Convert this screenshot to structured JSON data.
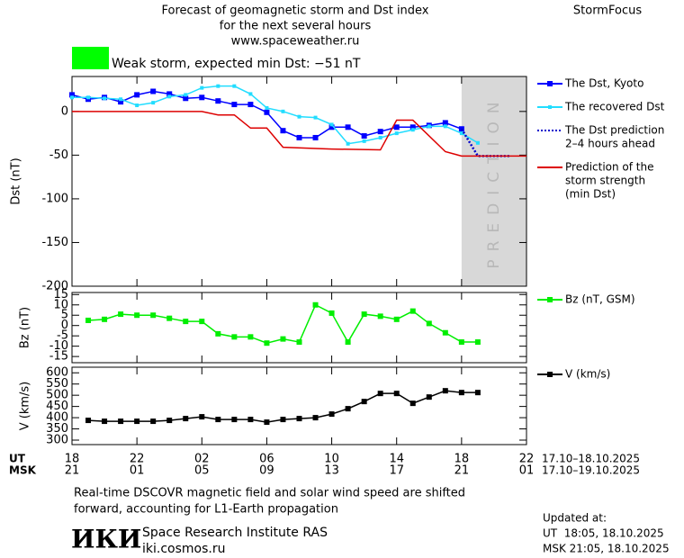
{
  "header": {
    "title": [
      "Forecast of geomagnetic storm and Dst index",
      "for the next several hours",
      "www.spaceweather.ru"
    ],
    "brand": "StormFocus"
  },
  "status": {
    "color": "#00ff00",
    "text": "Weak storm, expected min Dst: −51 nT"
  },
  "chart_data": [
    {
      "type": "line",
      "ylabel": "Dst (nT)",
      "xlim": [
        0,
        28
      ],
      "ylim": [
        -200,
        40
      ],
      "yticks": [
        0,
        -50,
        -100,
        -150,
        -200
      ],
      "shaded": {
        "xlim": [
          24,
          28
        ],
        "label": "PREDICTION",
        "color": "#d8d8d8"
      },
      "series": [
        {
          "name": [
            "The Dst, Kyoto"
          ],
          "color": "#0000ff",
          "marker": "square",
          "line": "solid",
          "x": [
            0,
            1,
            2,
            3,
            4,
            5,
            6,
            7,
            8,
            9,
            10,
            11,
            12,
            13,
            14,
            15,
            16,
            17,
            18,
            19,
            20,
            21,
            22,
            23,
            24
          ],
          "values": [
            19,
            14,
            16,
            11,
            19,
            23,
            20,
            15,
            16,
            12,
            8,
            8,
            -1,
            -22,
            -30,
            -30,
            -18,
            -18,
            -28,
            -23,
            -18,
            -18,
            -16,
            -13,
            -20
          ]
        },
        {
          "name": [
            "The recovered Dst"
          ],
          "color": "#22ddff",
          "marker": "small-square",
          "line": "solid",
          "x": [
            0,
            1,
            2,
            3,
            4,
            5,
            6,
            7,
            8,
            9,
            10,
            11,
            12,
            13,
            14,
            15,
            16,
            17,
            18,
            19,
            20,
            21,
            22,
            23,
            24,
            25
          ],
          "values": [
            16,
            16,
            15,
            14,
            7,
            10,
            17,
            19,
            27,
            29,
            29,
            20,
            4,
            0,
            -6,
            -7,
            -15,
            -37,
            -34,
            -30,
            -25,
            -21,
            -17,
            -17,
            -25,
            -36
          ]
        },
        {
          "name": [
            "The Dst prediction",
            "2–4 hours ahead"
          ],
          "color": "#0000cc",
          "marker": "none",
          "line": "dotted",
          "x": [
            24,
            25,
            27
          ],
          "values": [
            -20,
            -51,
            -51
          ]
        },
        {
          "name": [
            "Prediction of the",
            "storm strength",
            "(min Dst)"
          ],
          "color": "#dd0000",
          "marker": "none",
          "line": "solid",
          "x": [
            0,
            8,
            9,
            10,
            11,
            12,
            13,
            16,
            19,
            20,
            21,
            23,
            24,
            28
          ],
          "values": [
            0,
            0,
            -4,
            -4,
            -19,
            -19,
            -41,
            -43,
            -44,
            -10,
            -10,
            -46,
            -51,
            -51
          ]
        }
      ]
    },
    {
      "type": "line",
      "ylabel": "Bz (nT)",
      "xlim": [
        0,
        28
      ],
      "ylim": [
        -18,
        16
      ],
      "yticks": [
        15,
        10,
        5,
        0,
        -5,
        -10,
        -15
      ],
      "series": [
        {
          "name": [
            "Bz (nT, GSM)"
          ],
          "color": "#00ee00",
          "marker": "square",
          "line": "solid",
          "x": [
            1,
            2,
            3,
            4,
            5,
            6,
            7,
            8,
            9,
            10,
            11,
            12,
            13,
            14,
            15,
            16,
            17,
            18,
            19,
            20,
            21,
            22,
            23,
            24,
            25
          ],
          "values": [
            2.5,
            3,
            5.5,
            5,
            5,
            3.5,
            2,
            2,
            -4,
            -5.5,
            -5.5,
            -8.5,
            -6.5,
            -8,
            10,
            6,
            -8,
            5.5,
            4.5,
            3,
            7,
            1,
            -3.5,
            -8,
            -8
          ]
        }
      ]
    },
    {
      "type": "line",
      "ylabel": "V (km/s)",
      "xlim": [
        0,
        28
      ],
      "ylim": [
        280,
        625
      ],
      "yticks": [
        600,
        550,
        500,
        450,
        400,
        350,
        300
      ],
      "series": [
        {
          "name": [
            "V (km/s)"
          ],
          "color": "#000000",
          "marker": "square",
          "line": "solid",
          "x": [
            1,
            2,
            3,
            4,
            5,
            6,
            7,
            8,
            9,
            10,
            11,
            12,
            13,
            14,
            15,
            16,
            17,
            18,
            19,
            20,
            21,
            22,
            23,
            24,
            25
          ],
          "values": [
            388,
            384,
            384,
            384,
            384,
            388,
            396,
            404,
            392,
            392,
            392,
            380,
            392,
            396,
            400,
            416,
            440,
            472,
            508,
            508,
            464,
            492,
            520,
            512,
            512
          ]
        }
      ],
      "ut_label": "UT",
      "msk_label": "MSK",
      "xticks": [
        {
          "value": 0,
          "label": "18"
        },
        {
          "value": 4,
          "label": "22"
        },
        {
          "value": 8,
          "label": "02"
        },
        {
          "value": 12,
          "label": "06"
        },
        {
          "value": 16,
          "label": "10"
        },
        {
          "value": 20,
          "label": "14"
        },
        {
          "value": 24,
          "label": "18"
        },
        {
          "value": 28,
          "label": "22"
        }
      ],
      "xticks_msk": [
        {
          "value": 0,
          "label": "21"
        },
        {
          "value": 4,
          "label": "01"
        },
        {
          "value": 8,
          "label": "05"
        },
        {
          "value": 12,
          "label": "09"
        },
        {
          "value": 16,
          "label": "13"
        },
        {
          "value": 20,
          "label": "17"
        },
        {
          "value": 24,
          "label": "21"
        },
        {
          "value": 28,
          "label": "01"
        }
      ],
      "ut_range": "17.10–18.10.2025",
      "msk_range": "17.10–19.10.2025"
    }
  ],
  "footer": {
    "note": [
      "Real-time DSCOVR magnetic field and solar wind speed are shifted",
      "forward, accounting for L1-Earth propagation"
    ],
    "logo": "ИКИ",
    "institute": "Space Research Institute RAS",
    "site": "iki.cosmos.ru",
    "updated": [
      "Updated at:",
      "UT  18:05, 18.10.2025",
      "MSK 21:05, 18.10.2025"
    ]
  }
}
